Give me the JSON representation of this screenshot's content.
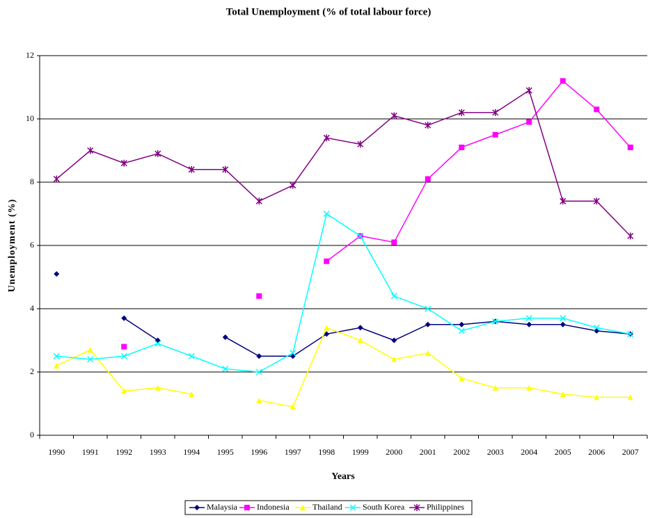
{
  "chart_data": {
    "type": "line",
    "title": "Total Unemployment (% of total labour force)",
    "x_label": "Years",
    "y_label": "Unemployment (%)",
    "categories": [
      "1990",
      "1991",
      "1992",
      "1993",
      "1994",
      "1995",
      "1996",
      "1997",
      "1998",
      "1999",
      "2000",
      "2001",
      "2002",
      "2003",
      "2004",
      "2005",
      "2006",
      "2007"
    ],
    "series": [
      {
        "name": "Malaysia",
        "color": "#000080",
        "marker": "diamond",
        "values": [
          5.1,
          null,
          3.7,
          3.0,
          null,
          3.1,
          2.5,
          2.5,
          3.2,
          3.4,
          3.0,
          3.5,
          3.5,
          3.6,
          3.5,
          3.5,
          3.3,
          3.2
        ]
      },
      {
        "name": "Indonesia",
        "color": "#ff00ff",
        "marker": "square",
        "values": [
          null,
          null,
          2.8,
          null,
          null,
          null,
          4.4,
          null,
          5.5,
          6.3,
          6.1,
          8.1,
          9.1,
          9.5,
          9.9,
          11.2,
          10.3,
          9.1
        ]
      },
      {
        "name": "Thailand",
        "color": "#ffff00",
        "marker": "triangle",
        "values": [
          2.2,
          2.7,
          1.4,
          1.5,
          1.3,
          null,
          1.1,
          0.9,
          3.4,
          3.0,
          2.4,
          2.6,
          1.8,
          1.5,
          1.5,
          1.3,
          1.2,
          1.2
        ]
      },
      {
        "name": "South Korea",
        "color": "#00ffff",
        "marker": "x",
        "values": [
          2.5,
          2.4,
          2.5,
          2.9,
          2.5,
          2.1,
          2.0,
          2.6,
          7.0,
          6.3,
          4.4,
          4.0,
          3.3,
          3.6,
          3.7,
          3.7,
          3.4,
          3.2
        ]
      },
      {
        "name": "Philippines",
        "color": "#800080",
        "marker": "asterisk",
        "values": [
          8.1,
          9.0,
          8.6,
          8.9,
          8.4,
          8.4,
          7.4,
          7.9,
          9.4,
          9.2,
          10.1,
          9.8,
          10.2,
          10.2,
          10.9,
          7.4,
          7.4,
          6.3
        ]
      }
    ],
    "ylim": [
      0,
      12
    ],
    "yticks": [
      0,
      2,
      4,
      6,
      8,
      10,
      12
    ],
    "grid": true,
    "legend": "bottom"
  }
}
